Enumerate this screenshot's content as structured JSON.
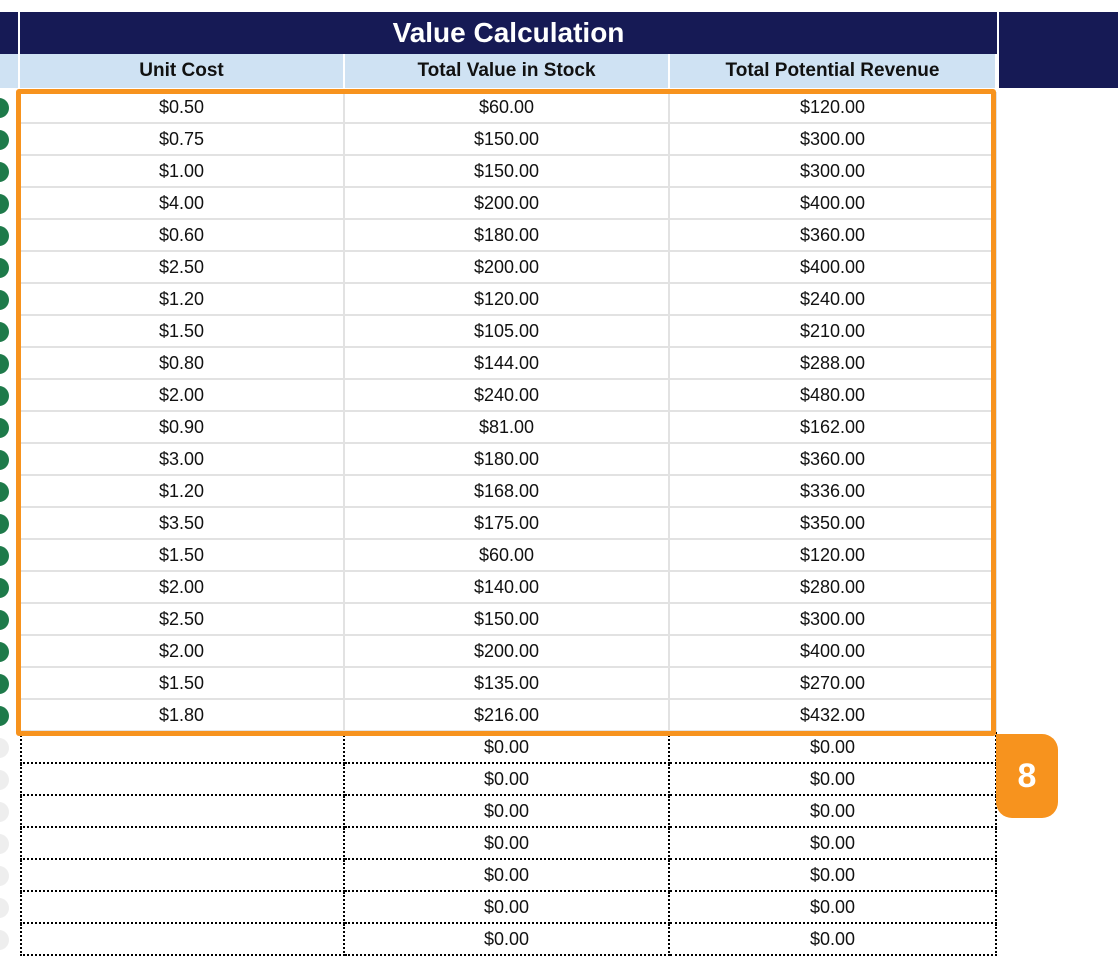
{
  "table": {
    "title": "Value Calculation",
    "columns": [
      "Unit Cost",
      "Total Value in Stock",
      "Total Potential Revenue"
    ],
    "rows": [
      [
        "$0.50",
        "$60.00",
        "$120.00"
      ],
      [
        "$0.75",
        "$150.00",
        "$300.00"
      ],
      [
        "$1.00",
        "$150.00",
        "$300.00"
      ],
      [
        "$4.00",
        "$200.00",
        "$400.00"
      ],
      [
        "$0.60",
        "$180.00",
        "$360.00"
      ],
      [
        "$2.50",
        "$200.00",
        "$400.00"
      ],
      [
        "$1.20",
        "$120.00",
        "$240.00"
      ],
      [
        "$1.50",
        "$105.00",
        "$210.00"
      ],
      [
        "$0.80",
        "$144.00",
        "$288.00"
      ],
      [
        "$2.00",
        "$240.00",
        "$480.00"
      ],
      [
        "$0.90",
        "$81.00",
        "$162.00"
      ],
      [
        "$3.00",
        "$180.00",
        "$360.00"
      ],
      [
        "$1.20",
        "$168.00",
        "$336.00"
      ],
      [
        "$3.50",
        "$175.00",
        "$350.00"
      ],
      [
        "$1.50",
        "$60.00",
        "$120.00"
      ],
      [
        "$2.00",
        "$140.00",
        "$280.00"
      ],
      [
        "$2.50",
        "$150.00",
        "$300.00"
      ],
      [
        "$2.00",
        "$200.00",
        "$400.00"
      ],
      [
        "$1.50",
        "$135.00",
        "$270.00"
      ],
      [
        "$1.80",
        "$216.00",
        "$432.00"
      ]
    ],
    "blank_rows": [
      [
        "$0.00",
        "$0.00"
      ],
      [
        "$0.00",
        "$0.00"
      ],
      [
        "$0.00",
        "$0.00"
      ],
      [
        "$0.00",
        "$0.00"
      ],
      [
        "$0.00",
        "$0.00"
      ],
      [
        "$0.00",
        "$0.00"
      ],
      [
        "$0.00",
        "$0.00"
      ]
    ]
  },
  "badge": "8"
}
